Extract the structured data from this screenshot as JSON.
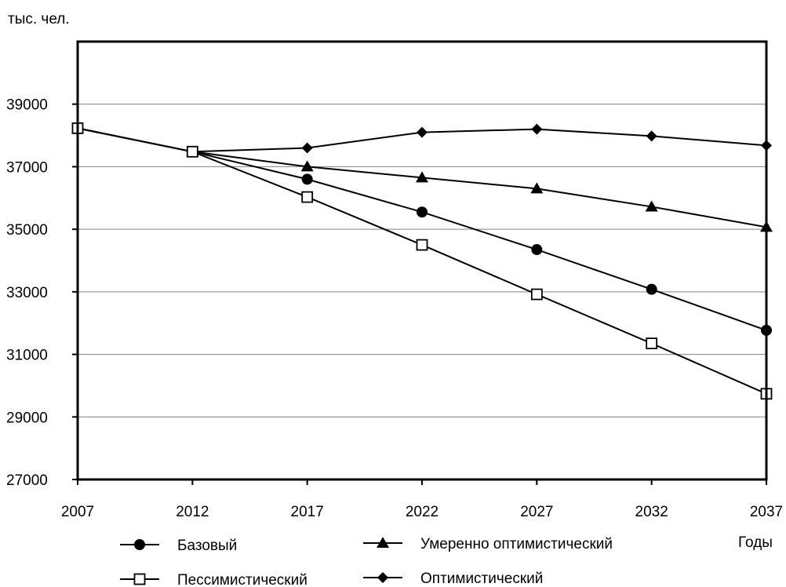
{
  "chart_data": {
    "type": "line",
    "y_unit_label": "тыс. чел.",
    "xlabel": "Годы",
    "x": [
      2007,
      2012,
      2017,
      2022,
      2027,
      2032,
      2037
    ],
    "x_tick_labels": [
      "2007",
      "2012",
      "2017",
      "2022",
      "2027",
      "2032",
      "2037"
    ],
    "ylim": [
      27000,
      41000
    ],
    "y_ticks": [
      27000,
      29000,
      31000,
      33000,
      35000,
      37000,
      39000
    ],
    "y_tick_labels": [
      "27000",
      "29000",
      "31000",
      "33000",
      "35000",
      "37000",
      "39000"
    ],
    "grid": {
      "horizontal": true,
      "vertical": false
    },
    "legend_position": "bottom",
    "series": [
      {
        "name": "Базовый",
        "marker": "circle-filled",
        "values": [
          38230,
          37480,
          36600,
          35550,
          34350,
          33080,
          31770
        ]
      },
      {
        "name": "Умеренно оптимистический",
        "marker": "triangle-filled",
        "values": [
          38230,
          37480,
          37000,
          36650,
          36300,
          35720,
          35070
        ]
      },
      {
        "name": "Пессимистический",
        "marker": "square-open",
        "values": [
          38230,
          37480,
          36030,
          34500,
          32920,
          31350,
          29740
        ]
      },
      {
        "name": "Оптимистический",
        "marker": "diamond-filled",
        "values": [
          38230,
          37480,
          37600,
          38100,
          38200,
          37980,
          37680
        ]
      }
    ],
    "line_color": "#000000",
    "grid_color": "#808080"
  }
}
